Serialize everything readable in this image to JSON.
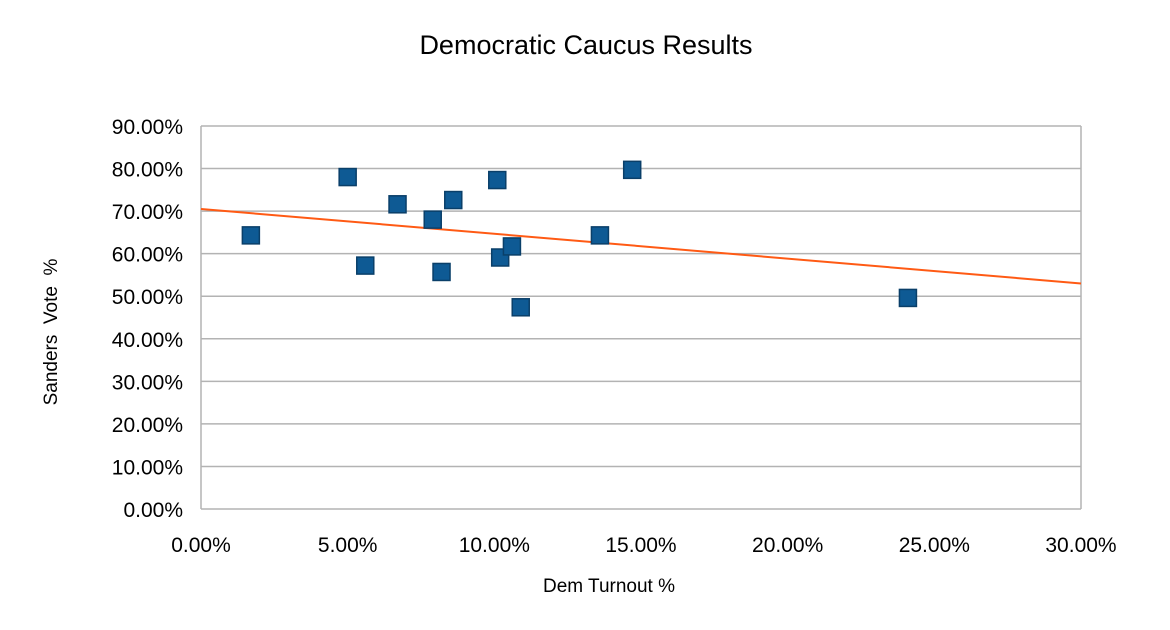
{
  "chart_data": {
    "type": "scatter",
    "title": "Democratic Caucus Results",
    "xlabel": "Dem Turnout %",
    "ylabel": "Sanders  Vote  %",
    "xlim": [
      0,
      0.3
    ],
    "ylim": [
      0,
      0.9
    ],
    "grid": {
      "horizontal": true,
      "vertical": false
    },
    "legend": "none",
    "x_ticks": [
      "0.00%",
      "5.00%",
      "10.00%",
      "15.00%",
      "20.00%",
      "25.00%",
      "30.00%"
    ],
    "y_ticks": [
      "0.00%",
      "10.00%",
      "20.00%",
      "30.00%",
      "40.00%",
      "50.00%",
      "60.00%",
      "70.00%",
      "80.00%",
      "90.00%"
    ],
    "series": [
      {
        "marker": "square",
        "color": "#0e5a94",
        "points": [
          {
            "x": 0.017,
            "y": 0.643
          },
          {
            "x": 0.05,
            "y": 0.78
          },
          {
            "x": 0.056,
            "y": 0.572
          },
          {
            "x": 0.067,
            "y": 0.716
          },
          {
            "x": 0.079,
            "y": 0.68
          },
          {
            "x": 0.082,
            "y": 0.557
          },
          {
            "x": 0.086,
            "y": 0.726
          },
          {
            "x": 0.101,
            "y": 0.773
          },
          {
            "x": 0.102,
            "y": 0.591
          },
          {
            "x": 0.106,
            "y": 0.617
          },
          {
            "x": 0.109,
            "y": 0.474
          },
          {
            "x": 0.136,
            "y": 0.643
          },
          {
            "x": 0.147,
            "y": 0.797
          },
          {
            "x": 0.241,
            "y": 0.496
          }
        ]
      }
    ],
    "trendline": {
      "type": "linear",
      "color": "#ff5a14",
      "x": [
        0,
        0.3
      ],
      "y": [
        0.705,
        0.53
      ]
    }
  }
}
